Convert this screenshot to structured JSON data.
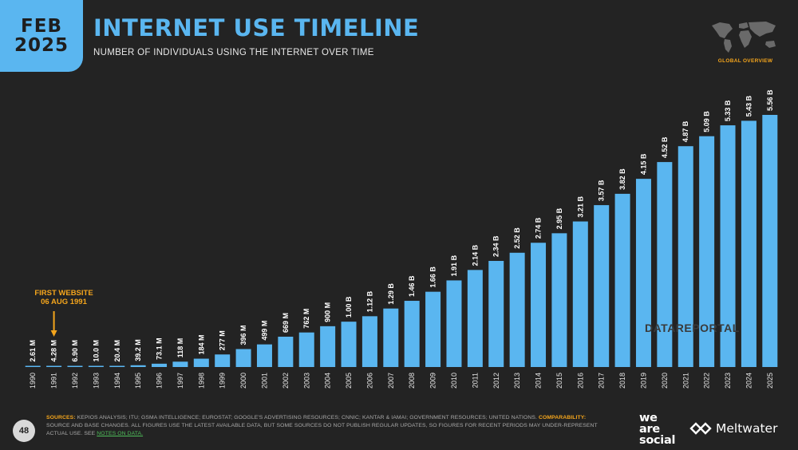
{
  "header": {
    "badge_month": "FEB",
    "badge_year": "2025",
    "title": "INTERNET USE TIMELINE",
    "subtitle": "NUMBER OF INDIVIDUALS USING THE INTERNET OVER TIME",
    "region_label": "GLOBAL OVERVIEW",
    "region_icon": "world-map-icon"
  },
  "annotation": {
    "line1": "FIRST WEBSITE",
    "line2": "06 AUG 1991",
    "year": "1991"
  },
  "watermark": "DATAREPORTAL",
  "footer": {
    "page": "48",
    "sources_key": "SOURCES:",
    "sources_text": " KEPIOS ANALYSIS; ITU; GSMA INTELLIGENCE; EUROSTAT; GOOGLE'S ADVERTISING RESOURCES; CNNIC; KANTAR & IAMAI; GOVERNMENT RESOURCES; UNITED NATIONS. ",
    "comparability_key": "COMPARABILITY:",
    "comparability_text": " SOURCE AND BASE CHANGES. ALL FIGURES USE THE LATEST AVAILABLE DATA, BUT SOME SOURCES DO NOT PUBLISH REGULAR UPDATES, SO FIGURES FOR RECENT PERIODS MAY UNDER-REPRESENT ACTUAL USE. SEE ",
    "notes_link": "NOTES ON DATA."
  },
  "brands": {
    "was_line1": "we",
    "was_line2": "are",
    "was_line3": "social",
    "meltwater": "Meltwater"
  },
  "colors": {
    "background": "#232323",
    "accent_blue": "#5ab6f0",
    "accent_orange": "#f4a51c"
  },
  "chart_data": {
    "type": "bar",
    "title": "INTERNET USE TIMELINE",
    "categories": [
      "1990",
      "1991",
      "1992",
      "1993",
      "1994",
      "1995",
      "1996",
      "1997",
      "1998",
      "1999",
      "2000",
      "2001",
      "2002",
      "2003",
      "2004",
      "2005",
      "2006",
      "2007",
      "2008",
      "2009",
      "2010",
      "2011",
      "2012",
      "2013",
      "2014",
      "2015",
      "2016",
      "2017",
      "2018",
      "2019",
      "2020",
      "2021",
      "2022",
      "2023",
      "2024",
      "2025"
    ],
    "values": [
      2.61,
      4.28,
      6.9,
      10.0,
      20.4,
      39.2,
      73.1,
      118,
      184,
      277,
      396,
      499,
      669,
      762,
      900,
      1000,
      1120,
      1290,
      1460,
      1660,
      1910,
      2140,
      2340,
      2520,
      2740,
      2950,
      3210,
      3570,
      3820,
      4150,
      4520,
      4870,
      5090,
      5330,
      5430,
      5560
    ],
    "value_unit": "millions",
    "labels": [
      "2.61 M",
      "4.28 M",
      "6.90 M",
      "10.0 M",
      "20.4 M",
      "39.2 M",
      "73.1 M",
      "118 M",
      "184 M",
      "277 M",
      "396 M",
      "499 M",
      "669 M",
      "762 M",
      "900 M",
      "1.00 B",
      "1.12 B",
      "1.29 B",
      "1.46 B",
      "1.66 B",
      "1.91 B",
      "2.14 B",
      "2.34 B",
      "2.52 B",
      "2.74 B",
      "2.95 B",
      "3.21 B",
      "3.57 B",
      "3.82 B",
      "4.15 B",
      "4.52 B",
      "4.87 B",
      "5.09 B",
      "5.33 B",
      "5.43 B",
      "5.56 B"
    ],
    "ylim": [
      0,
      5560
    ],
    "grid": false,
    "legend": "none",
    "xlabel": "",
    "ylabel": ""
  }
}
